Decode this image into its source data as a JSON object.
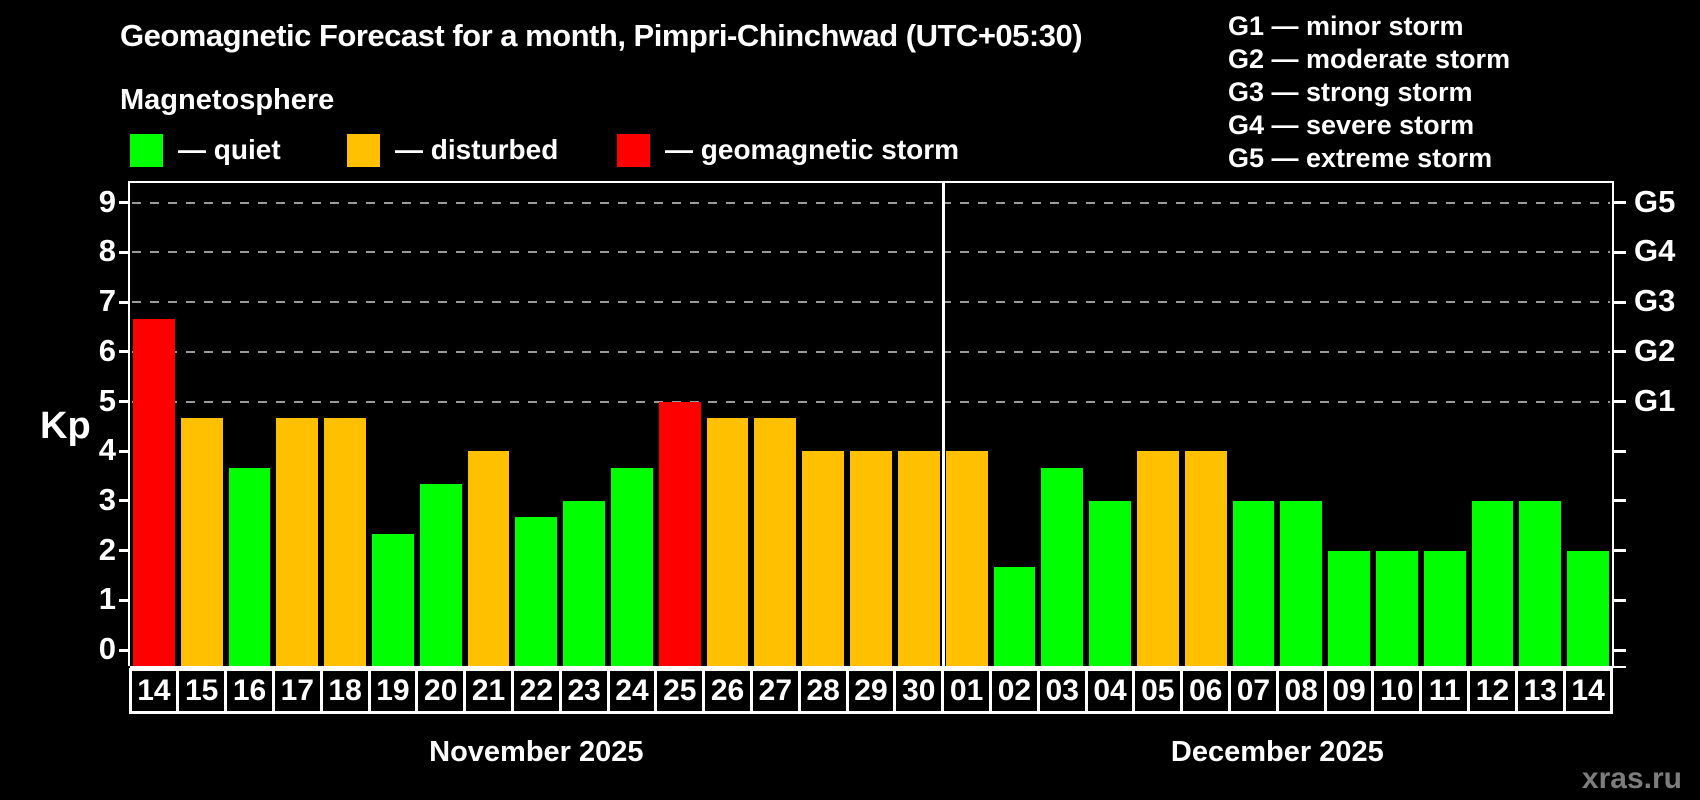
{
  "title": "Geomagnetic Forecast for a month, Pimpri-Chinchwad (UTC+05:30)",
  "subtitle": "Magnetosphere",
  "legend": {
    "items": [
      {
        "state": "quiet",
        "label": "— quiet",
        "color": "#00ff00"
      },
      {
        "state": "disturbed",
        "label": "— disturbed",
        "color": "#ffc000"
      },
      {
        "state": "storm",
        "label": "— geomagnetic storm",
        "color": "#ff0000"
      }
    ]
  },
  "storm_scale_legend": [
    "G1 — minor storm",
    "G2 — moderate storm",
    "G3 — strong storm",
    "G4 — severe storm",
    "G5 — extreme storm"
  ],
  "watermark": "xras.ru",
  "chart_data": {
    "type": "bar",
    "ylabel": "Kp",
    "ylim": [
      -0.37,
      9.4
    ],
    "yticks": [
      0,
      1,
      2,
      3,
      4,
      5,
      6,
      7,
      8,
      9
    ],
    "grid_kp": [
      5,
      6,
      7,
      8,
      9
    ],
    "grid_style": "dashed",
    "right_axis": [
      {
        "kp": 5,
        "label": "G1"
      },
      {
        "kp": 6,
        "label": "G2"
      },
      {
        "kp": 7,
        "label": "G3"
      },
      {
        "kp": 8,
        "label": "G4"
      },
      {
        "kp": 9,
        "label": "G5"
      }
    ],
    "months": [
      {
        "label": "November 2025",
        "days": [
          {
            "day": "14",
            "kp": 6.67,
            "state": "storm"
          },
          {
            "day": "15",
            "kp": 4.67,
            "state": "disturbed"
          },
          {
            "day": "16",
            "kp": 3.67,
            "state": "quiet"
          },
          {
            "day": "17",
            "kp": 4.67,
            "state": "disturbed"
          },
          {
            "day": "18",
            "kp": 4.67,
            "state": "disturbed"
          },
          {
            "day": "19",
            "kp": 2.33,
            "state": "quiet"
          },
          {
            "day": "20",
            "kp": 3.33,
            "state": "quiet"
          },
          {
            "day": "21",
            "kp": 4.0,
            "state": "disturbed"
          },
          {
            "day": "22",
            "kp": 2.67,
            "state": "quiet"
          },
          {
            "day": "23",
            "kp": 3.0,
            "state": "quiet"
          },
          {
            "day": "24",
            "kp": 3.67,
            "state": "quiet"
          },
          {
            "day": "25",
            "kp": 5.0,
            "state": "storm"
          },
          {
            "day": "26",
            "kp": 4.67,
            "state": "disturbed"
          },
          {
            "day": "27",
            "kp": 4.67,
            "state": "disturbed"
          },
          {
            "day": "28",
            "kp": 4.0,
            "state": "disturbed"
          },
          {
            "day": "29",
            "kp": 4.0,
            "state": "disturbed"
          },
          {
            "day": "30",
            "kp": 4.0,
            "state": "disturbed"
          }
        ]
      },
      {
        "label": "December 2025",
        "days": [
          {
            "day": "01",
            "kp": 4.0,
            "state": "disturbed"
          },
          {
            "day": "02",
            "kp": 1.67,
            "state": "quiet"
          },
          {
            "day": "03",
            "kp": 3.67,
            "state": "quiet"
          },
          {
            "day": "04",
            "kp": 3.0,
            "state": "quiet"
          },
          {
            "day": "05",
            "kp": 4.0,
            "state": "disturbed"
          },
          {
            "day": "06",
            "kp": 4.0,
            "state": "disturbed"
          },
          {
            "day": "07",
            "kp": 3.0,
            "state": "quiet"
          },
          {
            "day": "08",
            "kp": 3.0,
            "state": "quiet"
          },
          {
            "day": "09",
            "kp": 2.0,
            "state": "quiet"
          },
          {
            "day": "10",
            "kp": 2.0,
            "state": "quiet"
          },
          {
            "day": "11",
            "kp": 2.0,
            "state": "quiet"
          },
          {
            "day": "12",
            "kp": 3.0,
            "state": "quiet"
          },
          {
            "day": "13",
            "kp": 3.0,
            "state": "quiet"
          },
          {
            "day": "14",
            "kp": 2.0,
            "state": "quiet"
          }
        ]
      }
    ]
  }
}
